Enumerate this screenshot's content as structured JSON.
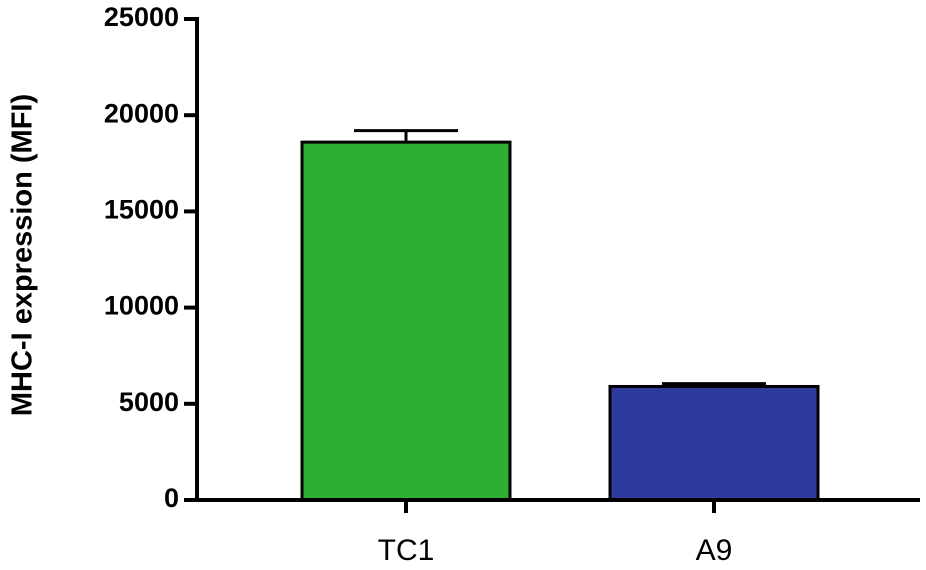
{
  "chart_data": {
    "type": "bar",
    "y_label": "MHC-I expression (MFI)",
    "categories": [
      "TC1",
      "A9"
    ],
    "values": [
      18600,
      5900
    ],
    "errors": [
      600,
      150
    ],
    "colors": [
      "#2eaf34",
      "#2e3a9e"
    ],
    "ylim": [
      0,
      25000
    ],
    "yticks": [
      0,
      5000,
      10000,
      15000,
      20000,
      25000
    ],
    "grid": false
  }
}
